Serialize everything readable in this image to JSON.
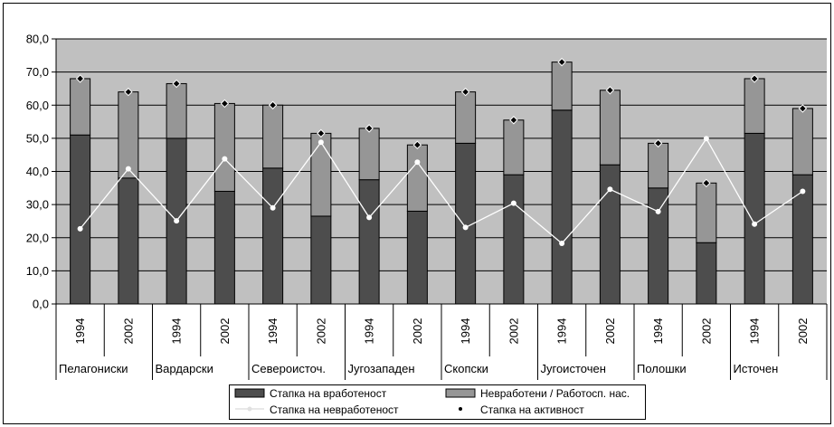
{
  "chart_data": {
    "type": "bar",
    "stacked": true,
    "colors": {
      "plot_bg": "#c0c0c0",
      "employment": "#4d4d4d",
      "unemployed": "#969696",
      "unemployment_line": "#ffffff",
      "activity_marker": "#000000"
    },
    "ylim": [
      0,
      80
    ],
    "yticks": [
      "0,0",
      "10,0",
      "20,0",
      "30,0",
      "40,0",
      "50,0",
      "60,0",
      "70,0",
      "80,0"
    ],
    "grid": true,
    "legend_position": "bottom",
    "regions": [
      "Пелагониски",
      "Вардарски",
      "Североисточ.",
      "Југозападен",
      "Скопски",
      "Југоисточен",
      "Полошки",
      "Источен"
    ],
    "years": [
      "1994",
      "2002"
    ],
    "categories": [
      "1994",
      "2002",
      "1994",
      "2002",
      "1994",
      "2002",
      "1994",
      "2002",
      "1994",
      "2002",
      "1994",
      "2002",
      "1994",
      "2002",
      "1994",
      "2002"
    ],
    "series": [
      {
        "name": "Стапка на вработеност",
        "kind": "bar",
        "values": [
          51.0,
          38.0,
          50.0,
          34.0,
          41.0,
          26.5,
          37.5,
          28.0,
          48.5,
          39.0,
          58.5,
          42.0,
          35.0,
          18.5,
          51.5,
          39.0
        ]
      },
      {
        "name": "Невработени / Работосп. нас.",
        "kind": "bar",
        "values": [
          17.0,
          26.0,
          16.5,
          26.5,
          19.0,
          25.0,
          15.5,
          20.0,
          15.5,
          16.5,
          14.5,
          22.5,
          13.5,
          18.0,
          16.5,
          20.0
        ]
      },
      {
        "name": "Стапка на невработеност",
        "kind": "line",
        "values": [
          22.7,
          40.8,
          25.1,
          43.8,
          29.0,
          48.8,
          26.1,
          42.8,
          23.1,
          30.4,
          18.3,
          34.6,
          27.9,
          49.9,
          24.1,
          34.0
        ]
      },
      {
        "name": "Стапка на активност",
        "kind": "marker",
        "values": [
          68.0,
          64.0,
          66.5,
          60.5,
          60.0,
          51.5,
          53.0,
          48.0,
          64.0,
          55.5,
          73.0,
          64.5,
          48.5,
          36.5,
          68.0,
          59.0
        ]
      }
    ]
  }
}
